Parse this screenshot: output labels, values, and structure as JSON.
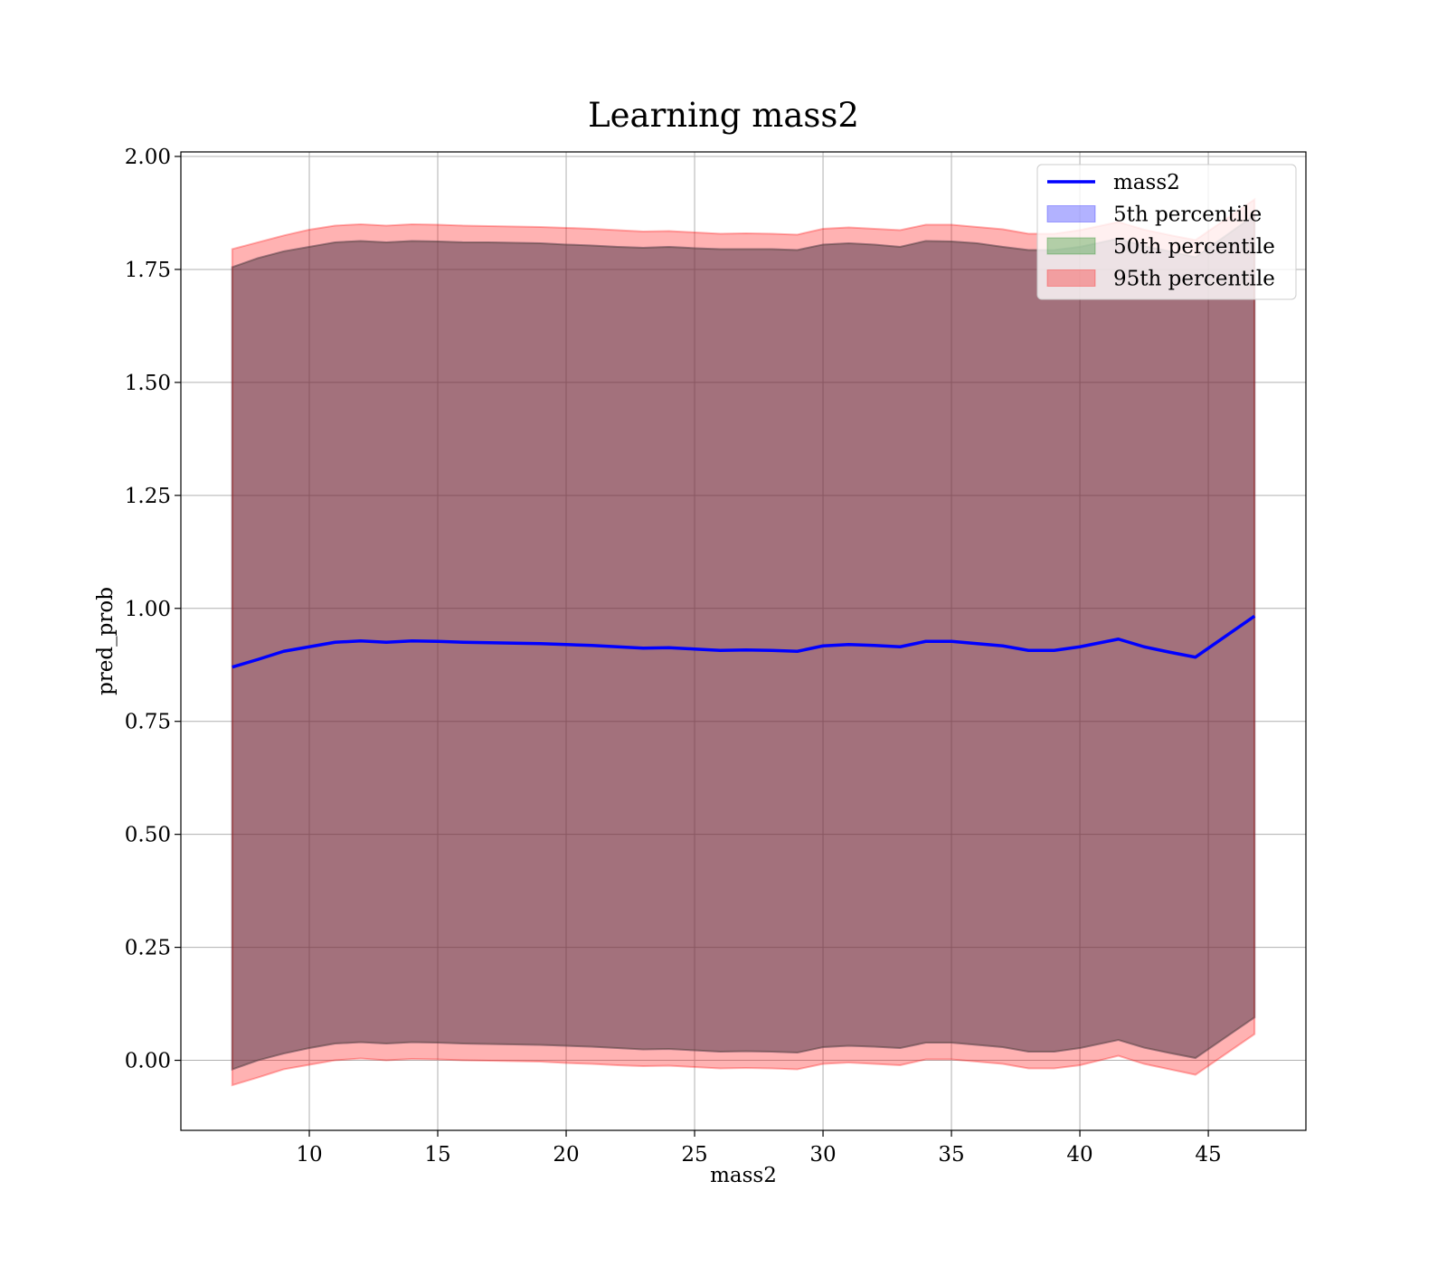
{
  "chart_data": {
    "type": "area",
    "title": "Learning mass2",
    "xlabel": "mass2",
    "ylabel": "pred_prob",
    "xlim": [
      5.0,
      48.8
    ],
    "ylim": [
      -0.155,
      2.01
    ],
    "xticks": [
      10,
      15,
      20,
      25,
      30,
      35,
      40,
      45
    ],
    "yticks": [
      0.0,
      0.25,
      0.5,
      0.75,
      1.0,
      1.25,
      1.5,
      1.75,
      2.0
    ],
    "ytick_labels": [
      "0.00",
      "0.25",
      "0.50",
      "0.75",
      "1.00",
      "1.25",
      "1.50",
      "1.75",
      "2.00"
    ],
    "grid": true,
    "legend_position": "top-right",
    "x": [
      7.0,
      8.0,
      9.0,
      10.0,
      11.0,
      12.0,
      13.0,
      14.0,
      15.0,
      16.0,
      17.0,
      18.0,
      19.0,
      20.0,
      21.0,
      22.0,
      23.0,
      24.0,
      25.0,
      26.0,
      27.0,
      28.0,
      29.0,
      30.0,
      31.0,
      32.0,
      33.0,
      34.0,
      35.0,
      36.0,
      37.0,
      38.0,
      39.0,
      40.0,
      41.5,
      42.5,
      43.5,
      44.5,
      46.8
    ],
    "series": [
      {
        "name": "mass2",
        "kind": "line",
        "color": "#0000ff",
        "values": [
          0.87,
          0.887,
          0.905,
          0.915,
          0.925,
          0.928,
          0.925,
          0.928,
          0.927,
          0.925,
          0.924,
          0.923,
          0.922,
          0.92,
          0.918,
          0.915,
          0.912,
          0.913,
          0.91,
          0.907,
          0.908,
          0.907,
          0.905,
          0.917,
          0.92,
          0.918,
          0.915,
          0.927,
          0.927,
          0.922,
          0.917,
          0.907,
          0.907,
          0.915,
          0.932,
          0.915,
          0.903,
          0.892,
          0.983
        ]
      },
      {
        "name": "5th percentile",
        "kind": "band",
        "color": "#0000ff",
        "upper": [
          1.755,
          1.775,
          1.79,
          1.8,
          1.81,
          1.813,
          1.81,
          1.813,
          1.812,
          1.81,
          1.81,
          1.809,
          1.808,
          1.805,
          1.803,
          1.8,
          1.798,
          1.8,
          1.797,
          1.795,
          1.795,
          1.795,
          1.793,
          1.805,
          1.808,
          1.805,
          1.8,
          1.813,
          1.812,
          1.808,
          1.8,
          1.793,
          1.793,
          1.8,
          1.818,
          1.802,
          1.79,
          1.777,
          1.87
        ],
        "lower": [
          -0.02,
          0.0,
          0.015,
          0.027,
          0.037,
          0.04,
          0.037,
          0.04,
          0.039,
          0.037,
          0.036,
          0.035,
          0.034,
          0.032,
          0.03,
          0.027,
          0.024,
          0.025,
          0.022,
          0.019,
          0.02,
          0.019,
          0.017,
          0.029,
          0.032,
          0.03,
          0.027,
          0.039,
          0.039,
          0.034,
          0.029,
          0.019,
          0.019,
          0.027,
          0.045,
          0.028,
          0.016,
          0.005,
          0.095
        ]
      },
      {
        "name": "50th percentile",
        "kind": "band",
        "color": "#008000",
        "upper": [
          1.755,
          1.775,
          1.79,
          1.8,
          1.81,
          1.813,
          1.81,
          1.813,
          1.812,
          1.81,
          1.81,
          1.809,
          1.808,
          1.805,
          1.803,
          1.8,
          1.798,
          1.8,
          1.797,
          1.795,
          1.795,
          1.795,
          1.793,
          1.805,
          1.808,
          1.805,
          1.8,
          1.813,
          1.812,
          1.808,
          1.8,
          1.793,
          1.793,
          1.8,
          1.818,
          1.802,
          1.79,
          1.777,
          1.87
        ],
        "lower": [
          -0.02,
          0.0,
          0.015,
          0.027,
          0.037,
          0.04,
          0.037,
          0.04,
          0.039,
          0.037,
          0.036,
          0.035,
          0.034,
          0.032,
          0.03,
          0.027,
          0.024,
          0.025,
          0.022,
          0.019,
          0.02,
          0.019,
          0.017,
          0.029,
          0.032,
          0.03,
          0.027,
          0.039,
          0.039,
          0.034,
          0.029,
          0.019,
          0.019,
          0.027,
          0.045,
          0.028,
          0.016,
          0.005,
          0.095
        ]
      },
      {
        "name": "95th percentile",
        "kind": "band",
        "color": "#ff0000",
        "upper": [
          1.795,
          1.81,
          1.825,
          1.838,
          1.847,
          1.85,
          1.847,
          1.85,
          1.849,
          1.847,
          1.846,
          1.845,
          1.844,
          1.842,
          1.84,
          1.837,
          1.834,
          1.835,
          1.832,
          1.829,
          1.83,
          1.829,
          1.827,
          1.84,
          1.843,
          1.84,
          1.837,
          1.849,
          1.849,
          1.844,
          1.839,
          1.829,
          1.829,
          1.837,
          1.855,
          1.838,
          1.826,
          1.815,
          1.905
        ],
        "lower": [
          -0.055,
          -0.038,
          -0.02,
          -0.01,
          0.0,
          0.004,
          0.0,
          0.003,
          0.002,
          0.0,
          -0.001,
          -0.002,
          -0.003,
          -0.006,
          -0.008,
          -0.011,
          -0.013,
          -0.012,
          -0.015,
          -0.018,
          -0.017,
          -0.018,
          -0.02,
          -0.008,
          -0.005,
          -0.008,
          -0.011,
          0.002,
          0.002,
          -0.003,
          -0.008,
          -0.018,
          -0.018,
          -0.011,
          0.01,
          -0.008,
          -0.02,
          -0.032,
          0.058
        ]
      }
    ]
  }
}
